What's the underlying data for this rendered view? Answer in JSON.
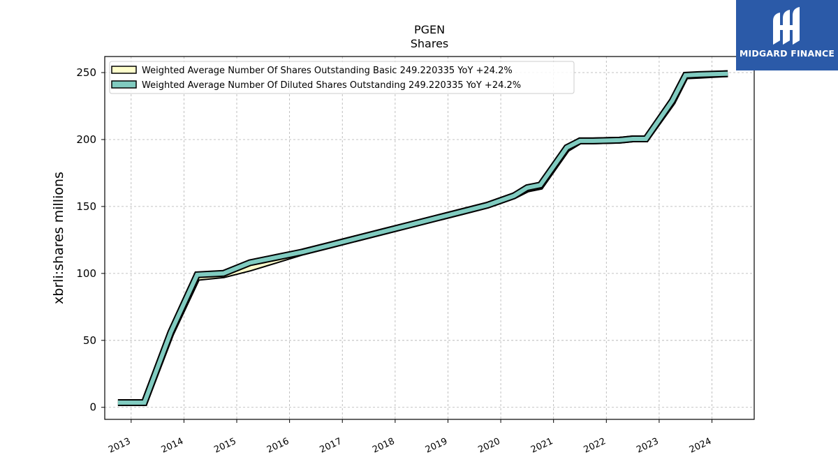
{
  "chart_data": {
    "type": "line",
    "title": "PGEN",
    "subtitle": "Shares",
    "ylabel": "xbrli:shares millions",
    "xlabel": "",
    "xlim": [
      2012.5,
      2024.8
    ],
    "ylim": [
      -9,
      262
    ],
    "yticks": [
      0,
      50,
      100,
      150,
      200,
      250
    ],
    "xticks": [
      "2013",
      "2014",
      "2015",
      "2016",
      "2017",
      "2018",
      "2019",
      "2020",
      "2021",
      "2022",
      "2023",
      "2024"
    ],
    "grid": true,
    "legend_position": "top-left",
    "series": [
      {
        "name": "Weighted Average Number Of Shares Outstanding Basic  249.220335 YoY +24.2%",
        "color": "#ffffcc",
        "points": [
          [
            2012.75,
            3.5
          ],
          [
            2013.0,
            3.5
          ],
          [
            2013.25,
            3.5
          ],
          [
            2013.75,
            55
          ],
          [
            2014.25,
            97
          ],
          [
            2014.75,
            99
          ],
          [
            2015.25,
            104
          ],
          [
            2015.75,
            110
          ],
          [
            2016.25,
            116
          ],
          [
            2016.75,
            121
          ],
          [
            2017.25,
            126
          ],
          [
            2017.75,
            131
          ],
          [
            2018.25,
            136
          ],
          [
            2018.75,
            141
          ],
          [
            2019.25,
            146
          ],
          [
            2019.75,
            151
          ],
          [
            2020.25,
            158
          ],
          [
            2020.5,
            163
          ],
          [
            2020.75,
            165
          ],
          [
            2021.25,
            193
          ],
          [
            2021.5,
            199
          ],
          [
            2021.75,
            199
          ],
          [
            2022.25,
            199.5
          ],
          [
            2022.5,
            200.5
          ],
          [
            2022.75,
            200.5
          ],
          [
            2023.25,
            228
          ],
          [
            2023.5,
            247.5
          ],
          [
            2023.75,
            248
          ],
          [
            2024.3,
            249.2
          ]
        ]
      },
      {
        "name": "Weighted Average Number Of Diluted Shares Outstanding  249.220335 YoY +24.2%",
        "color": "#80cbc0",
        "points": [
          [
            2012.75,
            3.5
          ],
          [
            2013.0,
            3.5
          ],
          [
            2013.25,
            3.5
          ],
          [
            2013.75,
            56
          ],
          [
            2014.25,
            99
          ],
          [
            2014.75,
            100
          ],
          [
            2015.25,
            108
          ],
          [
            2015.75,
            112
          ],
          [
            2016.25,
            116
          ],
          [
            2016.75,
            121
          ],
          [
            2017.25,
            126
          ],
          [
            2017.75,
            131
          ],
          [
            2018.25,
            136
          ],
          [
            2018.75,
            141
          ],
          [
            2019.25,
            146
          ],
          [
            2019.75,
            151
          ],
          [
            2020.25,
            158
          ],
          [
            2020.5,
            164
          ],
          [
            2020.75,
            166
          ],
          [
            2021.25,
            194
          ],
          [
            2021.5,
            199
          ],
          [
            2021.75,
            199
          ],
          [
            2022.25,
            199.5
          ],
          [
            2022.5,
            200.5
          ],
          [
            2022.75,
            200.5
          ],
          [
            2023.25,
            229
          ],
          [
            2023.5,
            248
          ],
          [
            2023.75,
            248.5
          ],
          [
            2024.3,
            249.2
          ]
        ]
      }
    ]
  },
  "logo": {
    "text": "MIDGARD FINANCE",
    "color": "#2b5aa8"
  }
}
